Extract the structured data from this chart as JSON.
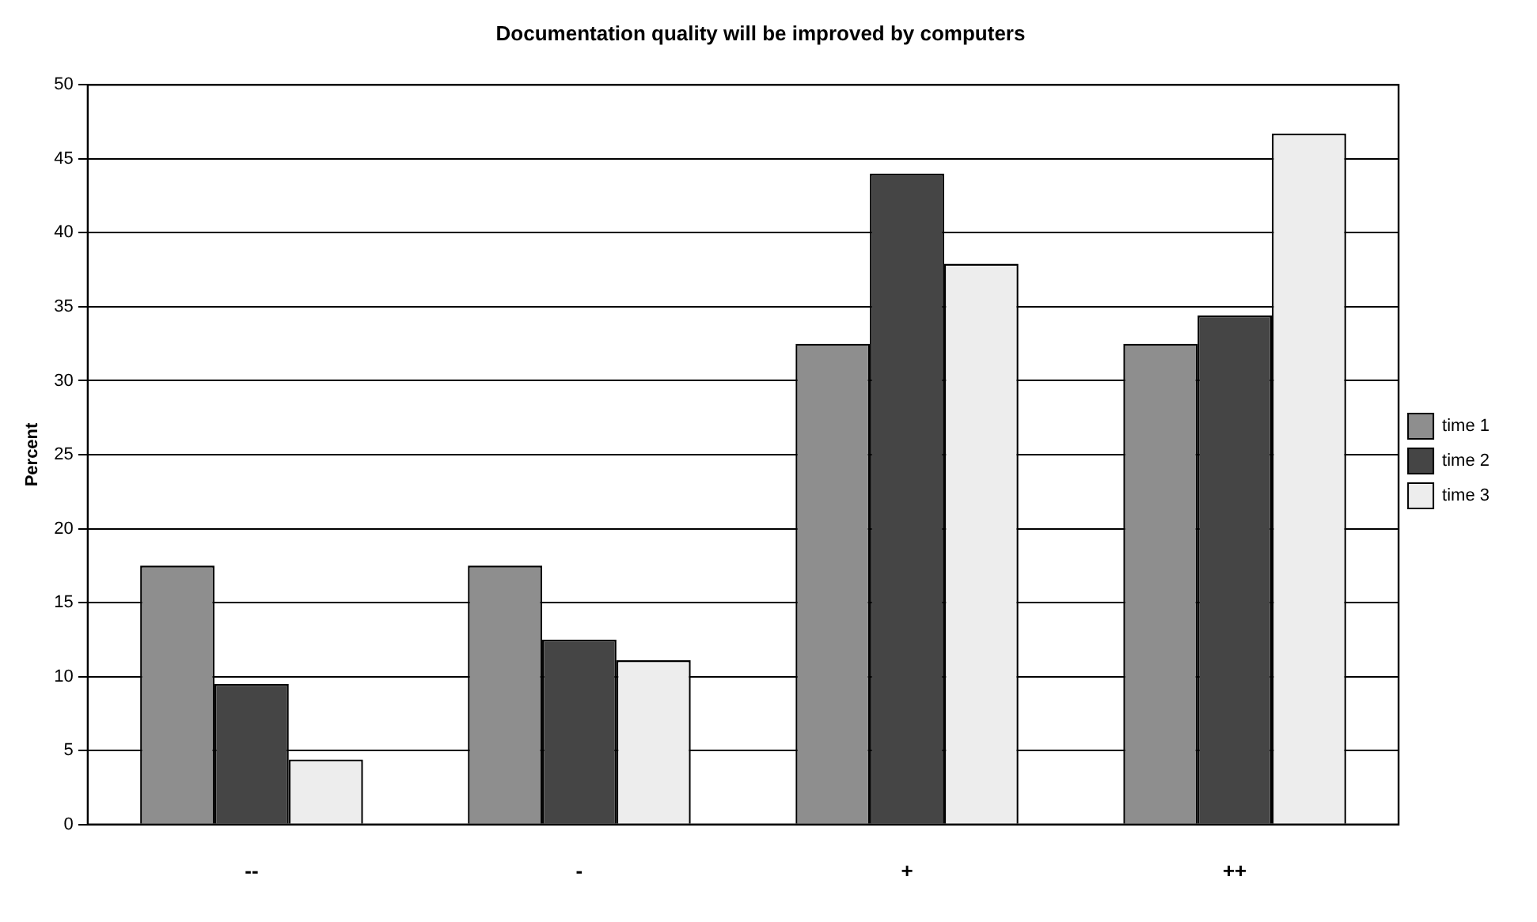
{
  "chart_data": {
    "type": "bar",
    "title": "Documentation quality will be improved by computers",
    "ylabel": "Percent",
    "categories": [
      "--",
      "-",
      "+",
      "++"
    ],
    "series": [
      {
        "name": "time 1",
        "color": "#8e8e8e",
        "values": [
          17.5,
          17.5,
          32.5,
          32.5
        ]
      },
      {
        "name": "time 2",
        "color": "#454545",
        "values": [
          9.5,
          12.5,
          44,
          34.4
        ]
      },
      {
        "name": "time 3",
        "color": "#ededed",
        "values": [
          4.4,
          11.1,
          37.9,
          46.7
        ]
      }
    ],
    "ylim": [
      0,
      50
    ],
    "yticks": [
      0,
      5,
      10,
      15,
      20,
      25,
      30,
      35,
      40,
      45,
      50
    ],
    "grid": "y",
    "legend": "right"
  }
}
